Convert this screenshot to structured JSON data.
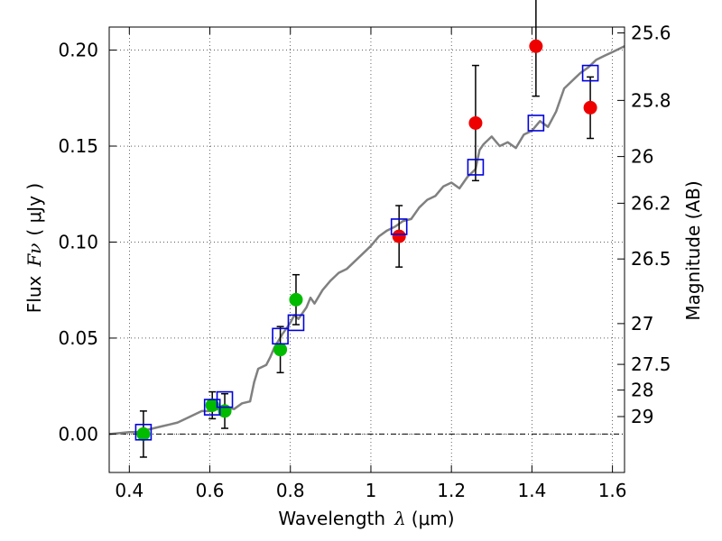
{
  "chart_data": {
    "type": "scatter",
    "xlabel_prefix": "Wavelength",
    "xlabel_symbol": "λ",
    "xlabel_unit": "(μm)",
    "ylabel_prefix": "Flux",
    "ylabel_symbol": "Fν",
    "ylabel_unit": "( μJy )",
    "y2label": "Magnitude (AB)",
    "xlim": [
      0.35,
      1.63
    ],
    "ylim": [
      -0.02,
      0.212
    ],
    "x_ticks": [
      {
        "value": 0.4,
        "label": "0.4"
      },
      {
        "value": 0.6,
        "label": "0.6"
      },
      {
        "value": 0.8,
        "label": "0.8"
      },
      {
        "value": 1.0,
        "label": "1"
      },
      {
        "value": 1.2,
        "label": "1.2"
      },
      {
        "value": 1.4,
        "label": "1.4"
      },
      {
        "value": 1.6,
        "label": "1.6"
      }
    ],
    "y_ticks": [
      {
        "value": 0.0,
        "label": "0.00"
      },
      {
        "value": 0.05,
        "label": "0.05"
      },
      {
        "value": 0.1,
        "label": "0.10"
      },
      {
        "value": 0.15,
        "label": "0.15"
      },
      {
        "value": 0.2,
        "label": "0.20"
      }
    ],
    "y2_ticks": [
      {
        "mag": 25.6,
        "label": "25.6"
      },
      {
        "mag": 25.8,
        "label": "25.8"
      },
      {
        "mag": 26.0,
        "label": "26"
      },
      {
        "mag": 26.2,
        "label": "26.2"
      },
      {
        "mag": 26.5,
        "label": "26.5"
      },
      {
        "mag": 27.0,
        "label": "27"
      },
      {
        "mag": 27.5,
        "label": "27.5"
      },
      {
        "mag": 28.0,
        "label": "28"
      },
      {
        "mag": 29.0,
        "label": "29"
      }
    ],
    "grid": true,
    "template_spectrum": {
      "color": "#808080",
      "x": [
        0.35,
        0.4,
        0.42,
        0.44,
        0.46,
        0.48,
        0.5,
        0.52,
        0.54,
        0.56,
        0.58,
        0.6,
        0.62,
        0.64,
        0.66,
        0.68,
        0.7,
        0.71,
        0.72,
        0.74,
        0.75,
        0.76,
        0.78,
        0.79,
        0.8,
        0.81,
        0.82,
        0.84,
        0.85,
        0.86,
        0.88,
        0.9,
        0.92,
        0.94,
        0.96,
        0.98,
        1.0,
        1.02,
        1.04,
        1.06,
        1.08,
        1.1,
        1.12,
        1.14,
        1.16,
        1.18,
        1.2,
        1.22,
        1.24,
        1.26,
        1.27,
        1.28,
        1.3,
        1.32,
        1.34,
        1.36,
        1.38,
        1.4,
        1.42,
        1.44,
        1.46,
        1.48,
        1.5,
        1.52,
        1.54,
        1.56,
        1.58,
        1.6,
        1.63
      ],
      "y": [
        0.0,
        0.001,
        0.001,
        0.002,
        0.003,
        0.004,
        0.005,
        0.006,
        0.008,
        0.01,
        0.012,
        0.012,
        0.013,
        0.014,
        0.013,
        0.016,
        0.017,
        0.027,
        0.034,
        0.036,
        0.04,
        0.045,
        0.052,
        0.055,
        0.058,
        0.062,
        0.06,
        0.066,
        0.071,
        0.068,
        0.075,
        0.08,
        0.084,
        0.086,
        0.09,
        0.094,
        0.098,
        0.103,
        0.106,
        0.108,
        0.111,
        0.112,
        0.118,
        0.122,
        0.124,
        0.129,
        0.131,
        0.128,
        0.134,
        0.138,
        0.148,
        0.151,
        0.155,
        0.15,
        0.152,
        0.149,
        0.156,
        0.158,
        0.163,
        0.16,
        0.168,
        0.18,
        0.184,
        0.188,
        0.191,
        0.195,
        0.197,
        0.199,
        0.202
      ]
    },
    "series": [
      {
        "marker": "circle",
        "color": "#00bb00",
        "points": [
          {
            "x": 0.435,
            "y": 0.0,
            "err": 0.012
          },
          {
            "x": 0.606,
            "y": 0.015,
            "err": 0.007
          },
          {
            "x": 0.637,
            "y": 0.012,
            "err": 0.009
          },
          {
            "x": 0.775,
            "y": 0.044,
            "err": 0.012
          },
          {
            "x": 0.814,
            "y": 0.07,
            "err": 0.013
          }
        ]
      },
      {
        "marker": "circle",
        "color": "#ee0000",
        "points": [
          {
            "x": 1.07,
            "y": 0.103,
            "err": 0.016
          },
          {
            "x": 1.26,
            "y": 0.162,
            "err": 0.03
          },
          {
            "x": 1.41,
            "y": 0.202,
            "err": 0.026
          },
          {
            "x": 1.545,
            "y": 0.17,
            "err": 0.016
          }
        ]
      },
      {
        "marker": "open-square",
        "color": "#0000dd",
        "points": [
          {
            "x": 0.435,
            "y": 0.001
          },
          {
            "x": 0.606,
            "y": 0.014
          },
          {
            "x": 0.637,
            "y": 0.018
          },
          {
            "x": 0.775,
            "y": 0.051
          },
          {
            "x": 0.814,
            "y": 0.058
          },
          {
            "x": 1.07,
            "y": 0.108
          },
          {
            "x": 1.26,
            "y": 0.139
          },
          {
            "x": 1.41,
            "y": 0.162
          },
          {
            "x": 1.545,
            "y": 0.188
          }
        ]
      }
    ]
  }
}
